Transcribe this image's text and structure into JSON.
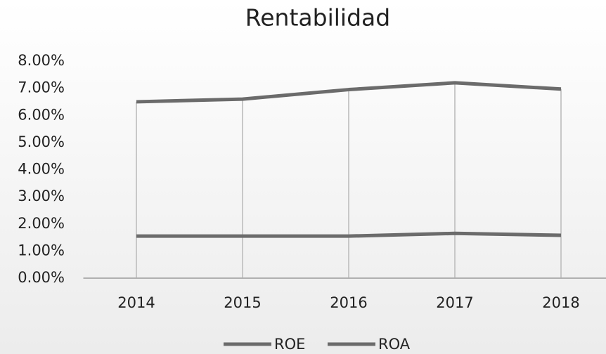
{
  "chart_data": {
    "type": "line",
    "title": "Rentabilidad",
    "categories": [
      "2014",
      "2015",
      "2016",
      "2017",
      "2018"
    ],
    "series": [
      {
        "name": "ROE",
        "color": "#6b6b6b",
        "values": [
          6.5,
          6.6,
          6.95,
          7.2,
          6.97
        ]
      },
      {
        "name": "ROA",
        "color": "#6b6b6b",
        "values": [
          1.55,
          1.55,
          1.55,
          1.65,
          1.58
        ]
      }
    ],
    "ylim": [
      0,
      8
    ],
    "yticks": [
      {
        "value": 0,
        "label": "0.00%"
      },
      {
        "value": 1,
        "label": "1.00%"
      },
      {
        "value": 2,
        "label": "2.00%"
      },
      {
        "value": 3,
        "label": "3.00%"
      },
      {
        "value": 4,
        "label": "4.00%"
      },
      {
        "value": 5,
        "label": "5.00%"
      },
      {
        "value": 6,
        "label": "6.00%"
      },
      {
        "value": 7,
        "label": "7.00%"
      },
      {
        "value": 8,
        "label": "8.00%"
      }
    ],
    "drop_lines": true,
    "legend": "bottom"
  }
}
